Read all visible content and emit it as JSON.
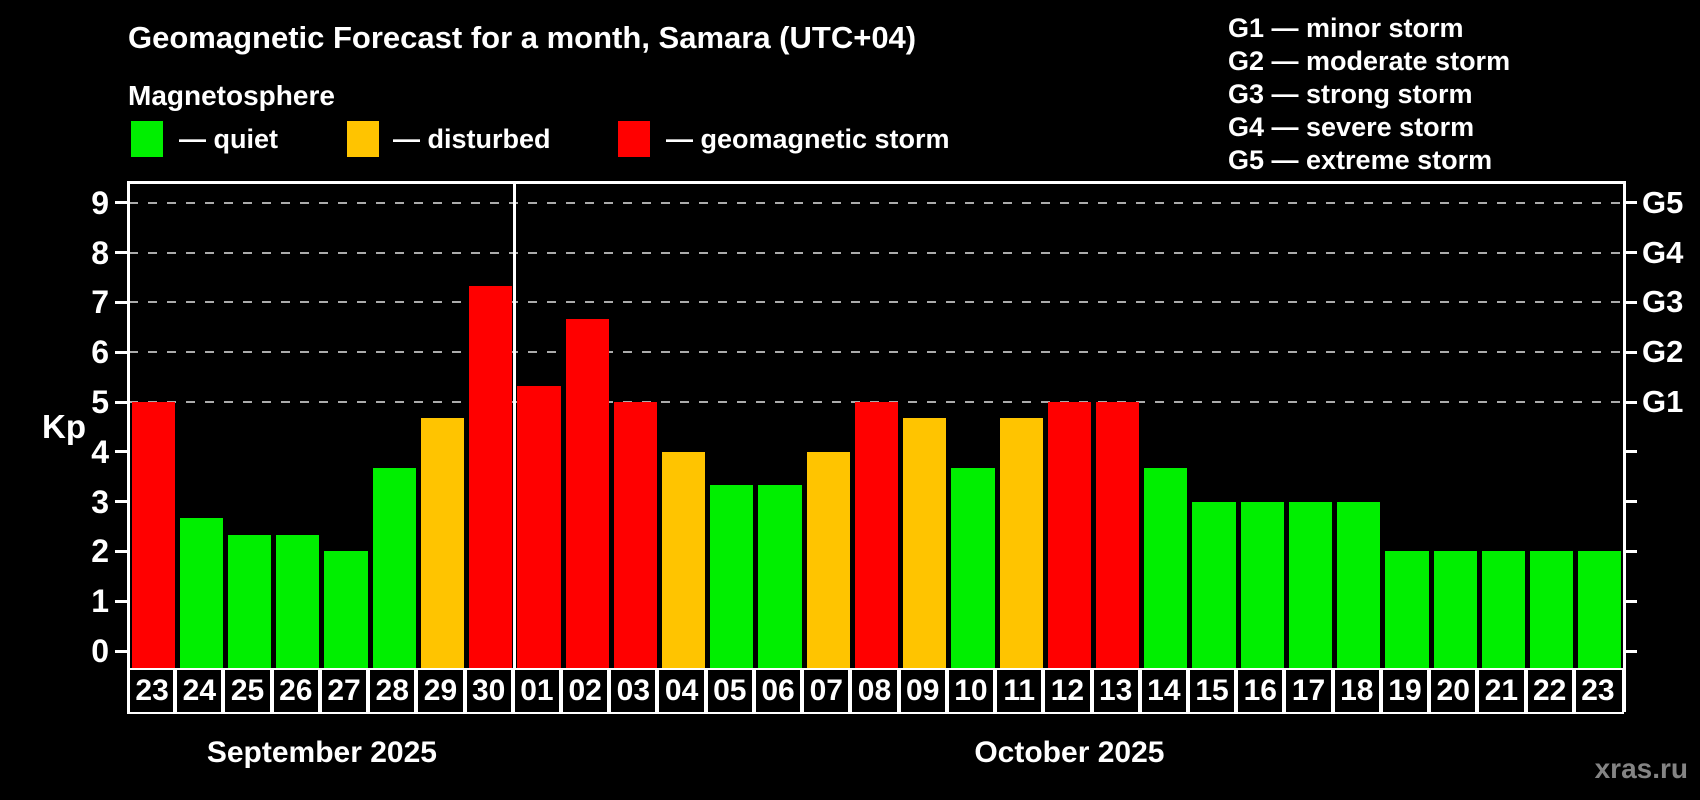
{
  "title": "Geomagnetic Forecast for a month, Samara (UTC+04)",
  "subtitle": "Magnetosphere",
  "bar_legend": {
    "items": [
      {
        "name": "quiet",
        "label": "— quiet",
        "color": "#00ef00"
      },
      {
        "name": "disturbed",
        "label": "— disturbed",
        "color": "#ffc400"
      },
      {
        "name": "storm",
        "label": "— geomagnetic storm",
        "color": "#ff0000"
      }
    ]
  },
  "g_legend": {
    "items": [
      "G1 — minor storm",
      "G2 — moderate storm",
      "G3 — strong storm",
      "G4 — severe storm",
      "G5 — extreme storm"
    ]
  },
  "watermark": "xras.ru",
  "colors": {
    "background": "#000000",
    "axis": "#ffffff",
    "grid": "#ababab",
    "quiet": "#00ef00",
    "disturbed": "#ffc400",
    "storm": "#ff0000",
    "watermark_text": "#848484"
  },
  "chart_data": {
    "type": "bar",
    "title": "Geomagnetic Forecast for a month, Samara (UTC+04)",
    "ylabel": "Kp",
    "ylim": [
      0,
      9
    ],
    "y_ticks": [
      0,
      1,
      2,
      3,
      4,
      5,
      6,
      7,
      8,
      9
    ],
    "gridlines_at_kp": [
      5,
      6,
      7,
      8,
      9
    ],
    "grid_style": "dashed",
    "right_axis_labels": [
      {
        "label": "G1",
        "kp": 5
      },
      {
        "label": "G2",
        "kp": 6
      },
      {
        "label": "G3",
        "kp": 7
      },
      {
        "label": "G4",
        "kp": 8
      },
      {
        "label": "G5",
        "kp": 9
      }
    ],
    "months": [
      {
        "label": "September 2025",
        "count": 8
      },
      {
        "label": "October 2025",
        "count": 23
      }
    ],
    "categories": [
      "23",
      "24",
      "25",
      "26",
      "27",
      "28",
      "29",
      "30",
      "01",
      "02",
      "03",
      "04",
      "05",
      "06",
      "07",
      "08",
      "09",
      "10",
      "11",
      "12",
      "13",
      "14",
      "15",
      "16",
      "17",
      "18",
      "19",
      "20",
      "21",
      "22",
      "23"
    ],
    "values": [
      5.0,
      2.67,
      2.33,
      2.33,
      2.0,
      3.67,
      4.67,
      7.33,
      5.33,
      6.67,
      5.0,
      4.0,
      3.33,
      3.33,
      4.0,
      5.0,
      4.67,
      3.67,
      4.67,
      5.0,
      5.0,
      3.67,
      3.0,
      3.0,
      3.0,
      3.0,
      2.0,
      2.0,
      2.0,
      2.0,
      2.0
    ],
    "statuses": [
      "storm",
      "quiet",
      "quiet",
      "quiet",
      "quiet",
      "quiet",
      "disturbed",
      "storm",
      "storm",
      "storm",
      "storm",
      "disturbed",
      "quiet",
      "quiet",
      "disturbed",
      "storm",
      "disturbed",
      "quiet",
      "disturbed",
      "storm",
      "storm",
      "quiet",
      "quiet",
      "quiet",
      "quiet",
      "quiet",
      "quiet",
      "quiet",
      "quiet",
      "quiet",
      "quiet"
    ]
  }
}
